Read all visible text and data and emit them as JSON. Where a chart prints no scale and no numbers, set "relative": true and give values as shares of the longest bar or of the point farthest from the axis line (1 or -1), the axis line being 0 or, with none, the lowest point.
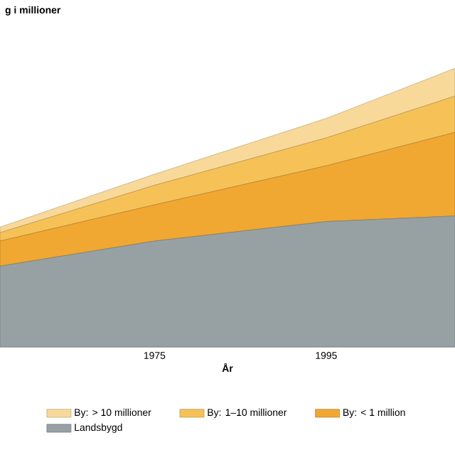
{
  "chart_data": {
    "type": "area",
    "title": "g i millioner",
    "xlabel": "År",
    "stacked": true,
    "relative": true,
    "x": [
      1957,
      1975,
      1995,
      2010
    ],
    "series": [
      {
        "name": "Landsbygd",
        "color": "#97a1a3",
        "values": [
          0.29,
          0.38,
          0.45,
          0.47
        ]
      },
      {
        "name": "By: < 1 million",
        "color": "#f0a832",
        "values": [
          0.09,
          0.13,
          0.2,
          0.3
        ]
      },
      {
        "name": "By: 1–10 millioner",
        "color": "#f6c258",
        "values": [
          0.03,
          0.07,
          0.1,
          0.13
        ]
      },
      {
        "name": "By: > 10 millioner",
        "color": "#f8d99a",
        "values": [
          0.02,
          0.04,
          0.07,
          0.1
        ]
      }
    ],
    "xlim": [
      1957,
      2010
    ],
    "xticks": [
      1975,
      1995
    ],
    "legend": "bottom"
  }
}
